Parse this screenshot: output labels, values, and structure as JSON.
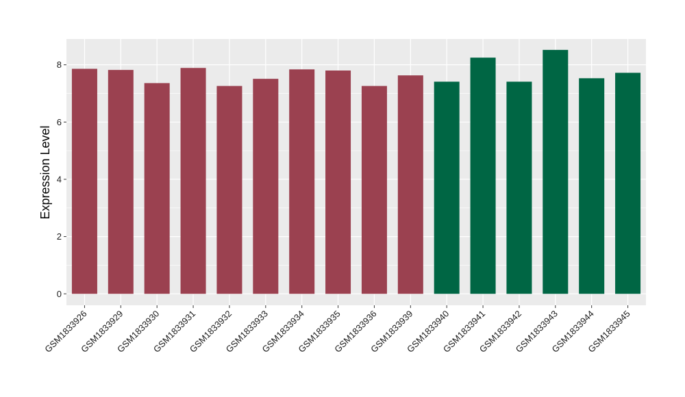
{
  "chart_data": {
    "type": "bar",
    "ylabel": "Expression Level",
    "xlabel": "",
    "ylim": [
      -0.4,
      8.9
    ],
    "y_ticks": [
      0,
      2,
      4,
      6,
      8
    ],
    "grid": true,
    "categories": [
      "GSM1833926",
      "GSM1833929",
      "GSM1833930",
      "GSM1833931",
      "GSM1833932",
      "GSM1833933",
      "GSM1833934",
      "GSM1833935",
      "GSM1833936",
      "GSM1833939",
      "GSM1833940",
      "GSM1833941",
      "GSM1833942",
      "GSM1833943",
      "GSM1833944",
      "GSM1833945"
    ],
    "values": [
      7.86,
      7.82,
      7.36,
      7.89,
      7.26,
      7.51,
      7.84,
      7.8,
      7.26,
      7.63,
      7.41,
      8.25,
      7.41,
      8.52,
      7.53,
      7.72
    ],
    "group_colors": [
      "#9b4150",
      "#9b4150",
      "#9b4150",
      "#9b4150",
      "#9b4150",
      "#9b4150",
      "#9b4150",
      "#9b4150",
      "#9b4150",
      "#9b4150",
      "#006644",
      "#006644",
      "#006644",
      "#006644",
      "#006644",
      "#006644"
    ],
    "panel_background": "#ebebeb",
    "grid_color": "#ffffff"
  }
}
